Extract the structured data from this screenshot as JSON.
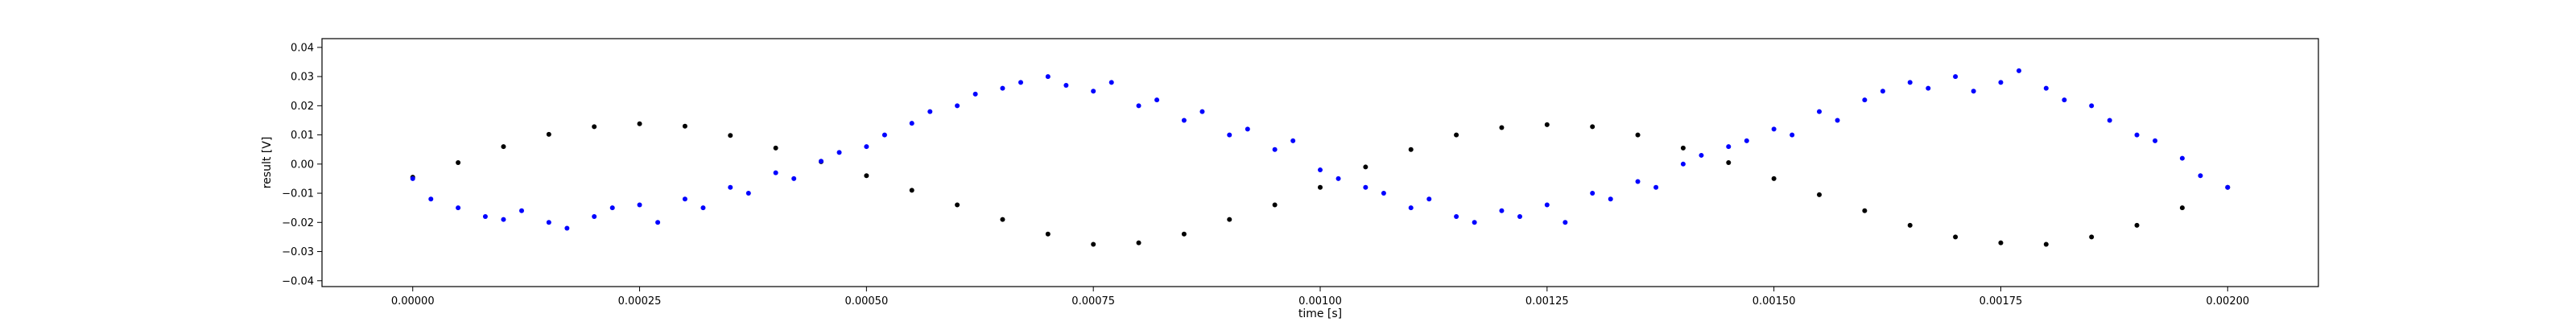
{
  "chart_data": {
    "type": "scatter",
    "xlabel": "time [s]",
    "ylabel": "result [V]",
    "xlim": [
      -0.0001,
      0.0021
    ],
    "ylim": [
      -0.042,
      0.043
    ],
    "x_ticks": [
      0.0,
      0.00025,
      0.0005,
      0.00075,
      0.001,
      0.00125,
      0.0015,
      0.00175,
      0.002
    ],
    "x_tick_labels": [
      "0.00000",
      "0.00025",
      "0.00050",
      "0.00075",
      "0.00100",
      "0.00125",
      "0.00150",
      "0.00175",
      "0.00200"
    ],
    "y_ticks": [
      -0.04,
      -0.03,
      -0.02,
      -0.01,
      0.0,
      0.01,
      0.02,
      0.03,
      0.04
    ],
    "y_tick_labels": [
      "−0.04",
      "−0.03",
      "−0.02",
      "−0.01",
      "0.00",
      "0.01",
      "0.02",
      "0.03",
      "0.04"
    ],
    "grid": false,
    "series": [
      {
        "color": "#000000",
        "marker": "circle",
        "x": [
          0.0,
          5e-05,
          0.0001,
          0.00015,
          0.0002,
          0.00025,
          0.0003,
          0.00035,
          0.0004,
          0.00045,
          0.0005,
          0.00055,
          0.0006,
          0.00065,
          0.0007,
          0.00075,
          0.0008,
          0.00085,
          0.0009,
          0.00095,
          0.001,
          0.00105,
          0.0011,
          0.00115,
          0.0012,
          0.00125,
          0.0013,
          0.00135,
          0.0014,
          0.00145,
          0.0015,
          0.00155,
          0.0016,
          0.00165,
          0.0017,
          0.00175,
          0.0018,
          0.00185,
          0.0019,
          0.00195,
          0.002
        ],
        "y": [
          -0.0045,
          0.0005,
          0.006,
          0.0102,
          0.0128,
          0.0138,
          0.013,
          0.0098,
          0.0055,
          0.0008,
          -0.004,
          -0.009,
          -0.014,
          -0.019,
          -0.024,
          -0.0275,
          -0.027,
          -0.024,
          -0.019,
          -0.014,
          -0.008,
          -0.001,
          0.005,
          0.01,
          0.0125,
          0.0135,
          0.0128,
          0.01,
          0.0055,
          0.0005,
          -0.005,
          -0.0105,
          -0.016,
          -0.021,
          -0.025,
          -0.027,
          -0.0275,
          -0.025,
          -0.021,
          -0.015,
          -0.008
        ]
      },
      {
        "color": "#0000ff",
        "marker": "circle",
        "x": [
          0.0,
          2e-05,
          5e-05,
          8e-05,
          0.0001,
          0.00012,
          0.00015,
          0.00017,
          0.0002,
          0.00022,
          0.00025,
          0.00027,
          0.0003,
          0.00032,
          0.00035,
          0.00037,
          0.0004,
          0.00042,
          0.00045,
          0.00047,
          0.0005,
          0.00052,
          0.00055,
          0.00057,
          0.0006,
          0.00062,
          0.00065,
          0.00067,
          0.0007,
          0.00072,
          0.00075,
          0.00077,
          0.0008,
          0.00082,
          0.00085,
          0.00087,
          0.0009,
          0.00092,
          0.00095,
          0.00097,
          0.001,
          0.00102,
          0.00105,
          0.00107,
          0.0011,
          0.00112,
          0.00115,
          0.00117,
          0.0012,
          0.00122,
          0.00125,
          0.00127,
          0.0013,
          0.00132,
          0.00135,
          0.00137,
          0.0014,
          0.00142,
          0.00145,
          0.00147,
          0.0015,
          0.00152,
          0.00155,
          0.00157,
          0.0016,
          0.00162,
          0.00165,
          0.00167,
          0.0017,
          0.00172,
          0.00175,
          0.00177,
          0.0018,
          0.00182,
          0.00185,
          0.00187,
          0.0019,
          0.00192,
          0.00195,
          0.00197,
          0.002
        ],
        "y": [
          -0.005,
          -0.012,
          -0.015,
          -0.018,
          -0.019,
          -0.016,
          -0.02,
          -0.022,
          -0.018,
          -0.015,
          -0.014,
          -0.02,
          -0.012,
          -0.015,
          -0.008,
          -0.01,
          -0.003,
          -0.005,
          0.001,
          0.004,
          0.006,
          0.01,
          0.014,
          0.018,
          0.02,
          0.024,
          0.026,
          0.028,
          0.03,
          0.027,
          0.025,
          0.028,
          0.02,
          0.022,
          0.015,
          0.018,
          0.01,
          0.012,
          0.005,
          0.008,
          -0.002,
          -0.005,
          -0.008,
          -0.01,
          -0.015,
          -0.012,
          -0.018,
          -0.02,
          -0.016,
          -0.018,
          -0.014,
          -0.02,
          -0.01,
          -0.012,
          -0.006,
          -0.008,
          0.0,
          0.003,
          0.006,
          0.008,
          0.012,
          0.01,
          0.018,
          0.015,
          0.022,
          0.025,
          0.028,
          0.026,
          0.03,
          0.025,
          0.028,
          0.032,
          0.026,
          0.022,
          0.02,
          0.015,
          0.01,
          0.008,
          0.002,
          -0.004,
          -0.008
        ]
      }
    ]
  }
}
